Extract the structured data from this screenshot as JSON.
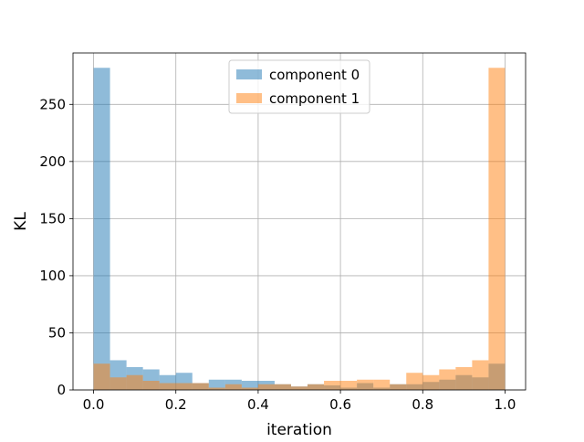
{
  "chart_data": {
    "type": "bar",
    "title": "",
    "xlabel": "iteration",
    "ylabel": "KL",
    "xlim": [
      -0.05,
      1.05
    ],
    "ylim": [
      0,
      295
    ],
    "xticks": [
      0.0,
      0.2,
      0.4,
      0.6,
      0.8,
      1.0
    ],
    "xtick_labels": [
      "0.0",
      "0.2",
      "0.4",
      "0.6",
      "0.8",
      "1.0"
    ],
    "yticks": [
      0,
      50,
      100,
      150,
      200,
      250
    ],
    "ytick_labels": [
      "0",
      "50",
      "100",
      "150",
      "200",
      "250"
    ],
    "grid": true,
    "legend_position": "top-center",
    "bins": 25,
    "bin_range": [
      0.0,
      1.0
    ],
    "series": [
      {
        "name": "component 0",
        "color": "#1f77b4",
        "alpha": 0.5,
        "values": [
          282,
          26,
          20,
          18,
          13,
          15,
          6,
          9,
          9,
          8,
          8,
          5,
          3,
          5,
          4,
          2,
          6,
          2,
          5,
          5,
          7,
          9,
          13,
          11,
          23
        ]
      },
      {
        "name": "component 1",
        "color": "#ff7f0e",
        "alpha": 0.5,
        "values": [
          23,
          11,
          13,
          8,
          6,
          6,
          6,
          2,
          5,
          2,
          5,
          5,
          3,
          5,
          8,
          8,
          9,
          9,
          5,
          15,
          13,
          18,
          20,
          26,
          282
        ]
      }
    ]
  }
}
